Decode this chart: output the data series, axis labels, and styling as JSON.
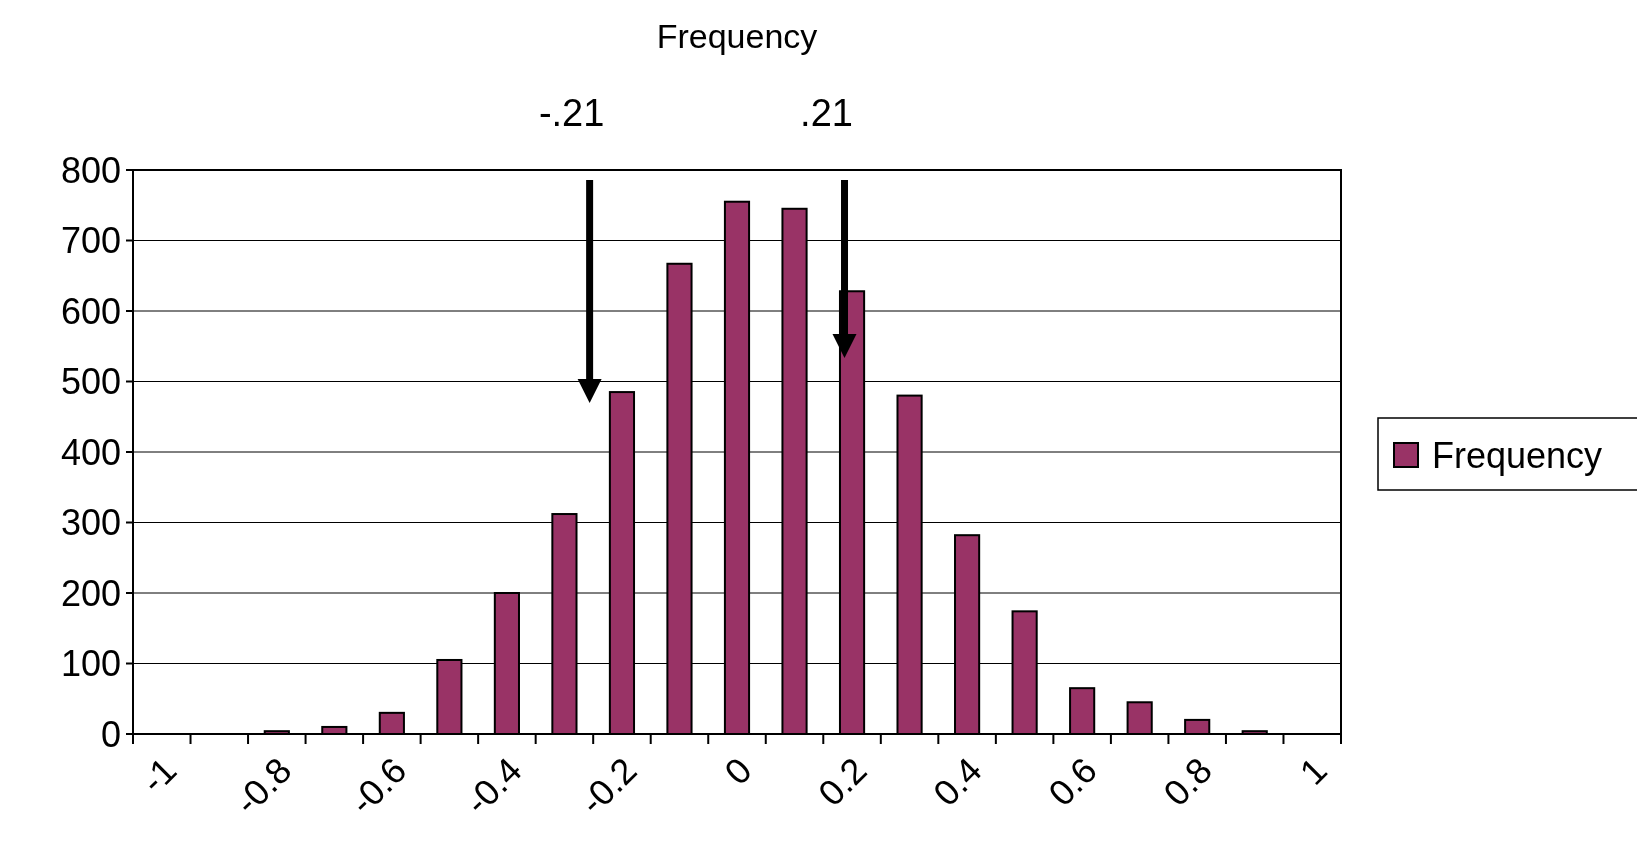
{
  "chart_data": {
    "type": "bar",
    "title": "Frequency",
    "categories": [
      "-1",
      null,
      "-0.8",
      null,
      "-0.6",
      null,
      "-0.4",
      null,
      "-0.2",
      null,
      "0",
      null,
      "0.2",
      null,
      "0.4",
      null,
      "0.6",
      null,
      "0.8",
      null,
      "1"
    ],
    "series": [
      {
        "name": "Frequency",
        "color": "#993366",
        "values": [
          0,
          0,
          4,
          10,
          30,
          105,
          200,
          312,
          485,
          667,
          755,
          745,
          628,
          480,
          282,
          174,
          65,
          45,
          20,
          4,
          0
        ]
      }
    ],
    "ylim": [
      0,
      800
    ],
    "yticks": [
      0,
      100,
      200,
      300,
      400,
      500,
      600,
      700,
      800
    ],
    "grid": "y",
    "legend": "right",
    "annotations": [
      "-.21",
      ".21"
    ]
  }
}
